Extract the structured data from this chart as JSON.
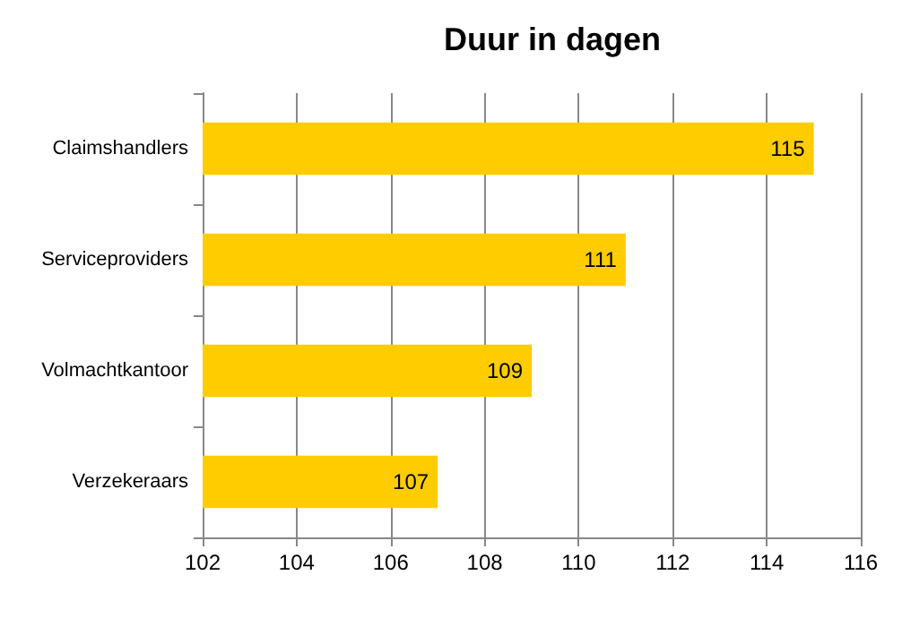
{
  "chart_data": {
    "type": "bar",
    "title": "Duur in dagen",
    "orientation": "horizontal",
    "categories": [
      "Claimshandlers",
      "Serviceproviders",
      "Volmachtkantoor",
      "Verzekeraars"
    ],
    "values": [
      115,
      111,
      109,
      107
    ],
    "color": "#ffcc00",
    "xlim": [
      102,
      116
    ],
    "xticks": [
      102,
      104,
      106,
      108,
      110,
      112,
      114,
      116
    ],
    "grid": "x",
    "data_labels": true
  }
}
